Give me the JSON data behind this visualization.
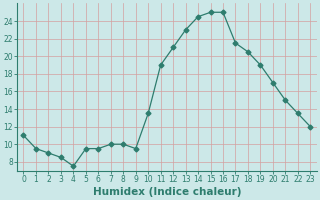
{
  "x": [
    0,
    1,
    2,
    3,
    4,
    5,
    6,
    7,
    8,
    9,
    10,
    11,
    12,
    13,
    14,
    15,
    16,
    17,
    18,
    19,
    20,
    21,
    22,
    23
  ],
  "y": [
    11,
    9.5,
    9,
    8.5,
    7.5,
    9.5,
    9.5,
    10,
    10,
    9.5,
    13.5,
    19,
    21,
    23,
    24.5,
    25,
    25,
    21.5,
    20.5,
    19,
    17,
    15,
    13.5,
    12
  ],
  "line_color": "#2e7d6e",
  "marker": "D",
  "marker_size": 2.5,
  "bg_color": "#cce8e8",
  "grid_color_major": "#b0c8c8",
  "grid_color_minor": "#daeaea",
  "xlabel": "Humidex (Indice chaleur)",
  "xlim": [
    -0.5,
    23.5
  ],
  "ylim": [
    7,
    26
  ],
  "yticks": [
    8,
    10,
    12,
    14,
    16,
    18,
    20,
    22,
    24
  ],
  "xtick_labels": [
    "0",
    "1",
    "2",
    "3",
    "4",
    "5",
    "6",
    "7",
    "8",
    "9",
    "10",
    "11",
    "12",
    "13",
    "14",
    "15",
    "16",
    "17",
    "18",
    "19",
    "20",
    "21",
    "22",
    "23"
  ],
  "tick_fontsize": 5.5,
  "xlabel_fontsize": 7.5,
  "spine_color": "#2e7d6e",
  "tick_color": "#2e7d6e",
  "label_color": "#2e7d6e"
}
